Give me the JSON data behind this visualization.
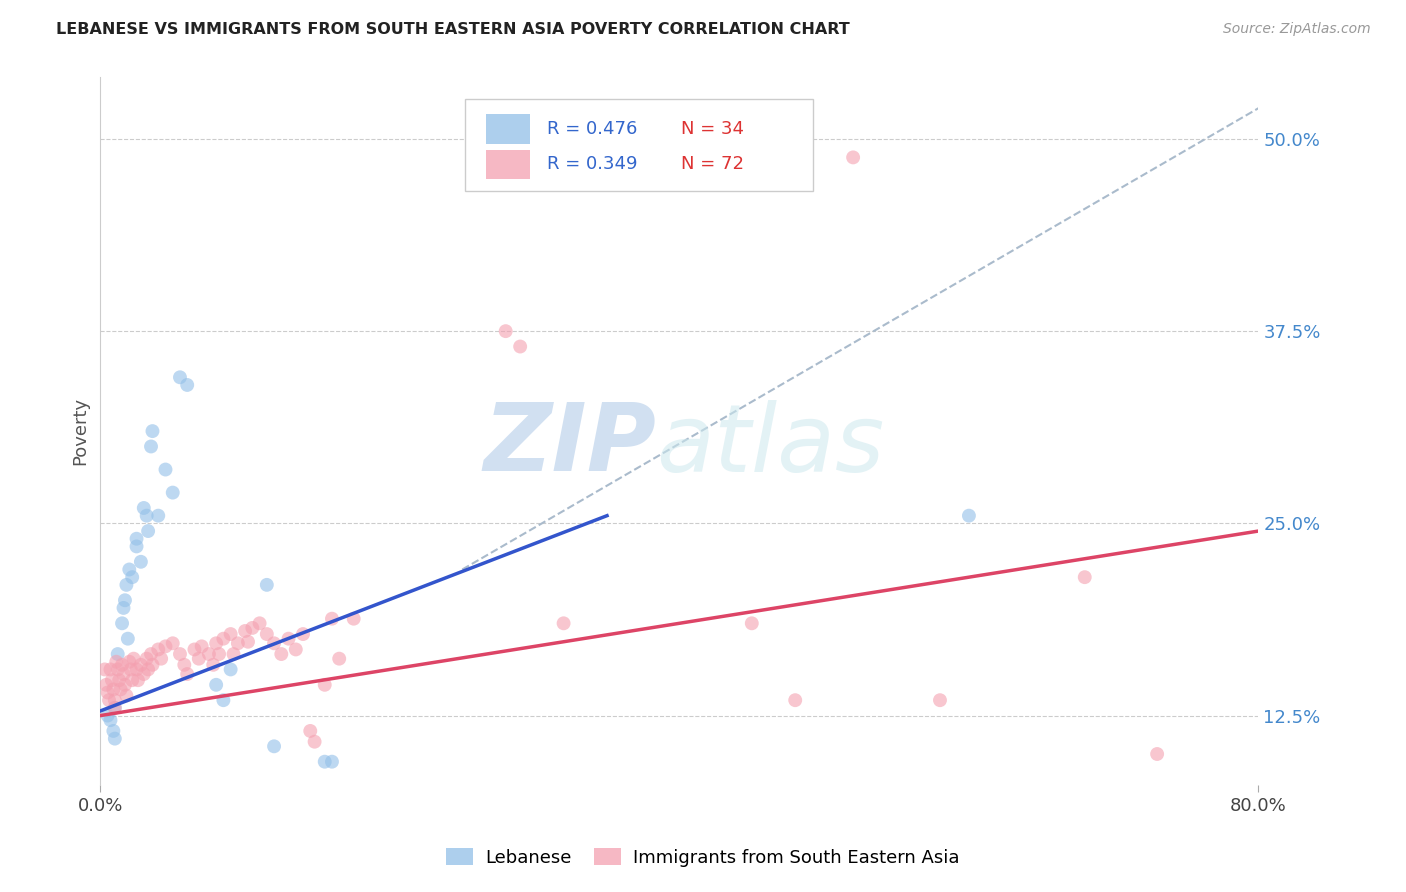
{
  "title": "LEBANESE VS IMMIGRANTS FROM SOUTH EASTERN ASIA POVERTY CORRELATION CHART",
  "source": "Source: ZipAtlas.com",
  "ylabel": "Poverty",
  "ytick_labels": [
    "12.5%",
    "25.0%",
    "37.5%",
    "50.0%"
  ],
  "ytick_values": [
    0.125,
    0.25,
    0.375,
    0.5
  ],
  "xlim": [
    0.0,
    0.8
  ],
  "ylim": [
    0.08,
    0.54
  ],
  "background_color": "#ffffff",
  "grid_color": "#cccccc",
  "blue_scatter": [
    [
      0.005,
      0.125
    ],
    [
      0.007,
      0.122
    ],
    [
      0.009,
      0.115
    ],
    [
      0.01,
      0.13
    ],
    [
      0.01,
      0.11
    ],
    [
      0.012,
      0.165
    ],
    [
      0.015,
      0.185
    ],
    [
      0.016,
      0.195
    ],
    [
      0.017,
      0.2
    ],
    [
      0.018,
      0.21
    ],
    [
      0.019,
      0.175
    ],
    [
      0.02,
      0.22
    ],
    [
      0.022,
      0.215
    ],
    [
      0.025,
      0.24
    ],
    [
      0.025,
      0.235
    ],
    [
      0.028,
      0.225
    ],
    [
      0.03,
      0.26
    ],
    [
      0.032,
      0.255
    ],
    [
      0.033,
      0.245
    ],
    [
      0.035,
      0.3
    ],
    [
      0.036,
      0.31
    ],
    [
      0.04,
      0.255
    ],
    [
      0.045,
      0.285
    ],
    [
      0.05,
      0.27
    ],
    [
      0.055,
      0.345
    ],
    [
      0.06,
      0.34
    ],
    [
      0.08,
      0.145
    ],
    [
      0.085,
      0.135
    ],
    [
      0.09,
      0.155
    ],
    [
      0.115,
      0.21
    ],
    [
      0.12,
      0.105
    ],
    [
      0.155,
      0.095
    ],
    [
      0.16,
      0.095
    ],
    [
      0.6,
      0.255
    ]
  ],
  "pink_scatter": [
    [
      0.003,
      0.155
    ],
    [
      0.004,
      0.145
    ],
    [
      0.005,
      0.14
    ],
    [
      0.006,
      0.135
    ],
    [
      0.007,
      0.155
    ],
    [
      0.008,
      0.148
    ],
    [
      0.009,
      0.142
    ],
    [
      0.01,
      0.135
    ],
    [
      0.01,
      0.13
    ],
    [
      0.011,
      0.16
    ],
    [
      0.012,
      0.155
    ],
    [
      0.013,
      0.148
    ],
    [
      0.014,
      0.142
    ],
    [
      0.015,
      0.158
    ],
    [
      0.016,
      0.152
    ],
    [
      0.017,
      0.145
    ],
    [
      0.018,
      0.138
    ],
    [
      0.02,
      0.16
    ],
    [
      0.021,
      0.155
    ],
    [
      0.022,
      0.148
    ],
    [
      0.023,
      0.162
    ],
    [
      0.025,
      0.155
    ],
    [
      0.026,
      0.148
    ],
    [
      0.028,
      0.158
    ],
    [
      0.03,
      0.152
    ],
    [
      0.032,
      0.162
    ],
    [
      0.033,
      0.155
    ],
    [
      0.035,
      0.165
    ],
    [
      0.036,
      0.158
    ],
    [
      0.04,
      0.168
    ],
    [
      0.042,
      0.162
    ],
    [
      0.045,
      0.17
    ],
    [
      0.05,
      0.172
    ],
    [
      0.055,
      0.165
    ],
    [
      0.058,
      0.158
    ],
    [
      0.06,
      0.152
    ],
    [
      0.065,
      0.168
    ],
    [
      0.068,
      0.162
    ],
    [
      0.07,
      0.17
    ],
    [
      0.075,
      0.165
    ],
    [
      0.078,
      0.158
    ],
    [
      0.08,
      0.172
    ],
    [
      0.082,
      0.165
    ],
    [
      0.085,
      0.175
    ],
    [
      0.09,
      0.178
    ],
    [
      0.092,
      0.165
    ],
    [
      0.095,
      0.172
    ],
    [
      0.1,
      0.18
    ],
    [
      0.102,
      0.173
    ],
    [
      0.105,
      0.182
    ],
    [
      0.11,
      0.185
    ],
    [
      0.115,
      0.178
    ],
    [
      0.12,
      0.172
    ],
    [
      0.125,
      0.165
    ],
    [
      0.13,
      0.175
    ],
    [
      0.135,
      0.168
    ],
    [
      0.14,
      0.178
    ],
    [
      0.145,
      0.115
    ],
    [
      0.148,
      0.108
    ],
    [
      0.155,
      0.145
    ],
    [
      0.16,
      0.188
    ],
    [
      0.165,
      0.162
    ],
    [
      0.175,
      0.188
    ],
    [
      0.28,
      0.375
    ],
    [
      0.29,
      0.365
    ],
    [
      0.32,
      0.185
    ],
    [
      0.45,
      0.185
    ],
    [
      0.48,
      0.135
    ],
    [
      0.58,
      0.135
    ],
    [
      0.68,
      0.215
    ],
    [
      0.73,
      0.1
    ],
    [
      0.52,
      0.488
    ]
  ],
  "blue_line": {
    "x0": 0.0,
    "y0": 0.128,
    "x1": 0.35,
    "y1": 0.255
  },
  "pink_line": {
    "x0": 0.0,
    "y0": 0.125,
    "x1": 0.8,
    "y1": 0.245
  },
  "gray_dash_line": {
    "x0": 0.25,
    "y0": 0.22,
    "x1": 0.8,
    "y1": 0.52
  },
  "blue_color": "#92bfe8",
  "pink_color": "#f4a0b0",
  "blue_line_color": "#3355cc",
  "pink_line_color": "#dd4466",
  "gray_dash_color": "#aabbcc",
  "scatter_alpha": 0.6,
  "scatter_size": 100,
  "xtick_positions": [
    0.0,
    0.8
  ],
  "xtick_labels": [
    "0.0%",
    "80.0%"
  ]
}
